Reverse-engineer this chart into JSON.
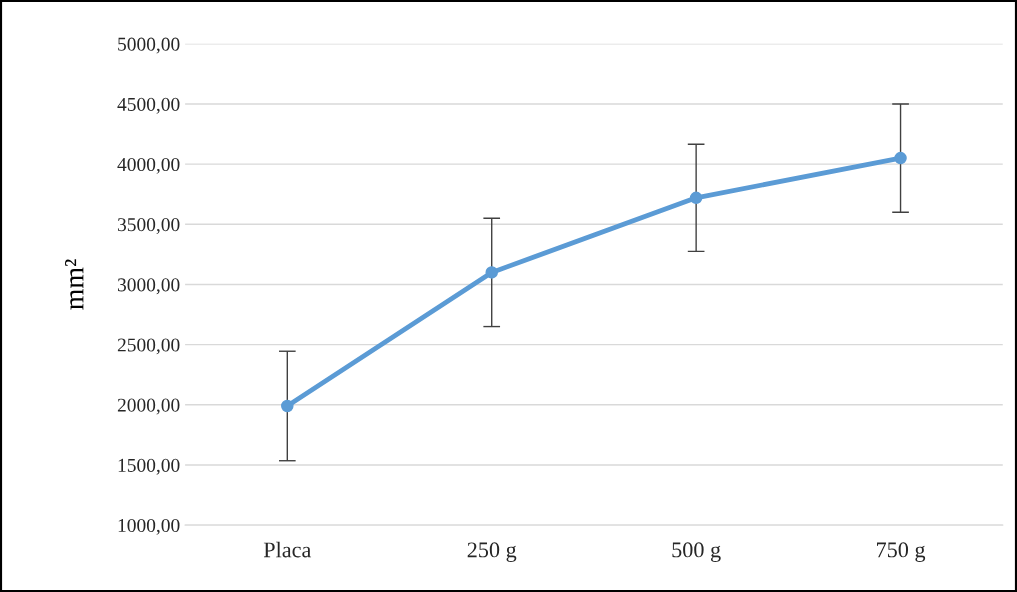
{
  "chart_data": {
    "type": "line",
    "ylabel": "mm²",
    "categories": [
      "Placa",
      "250 g",
      "500 g",
      "750 g"
    ],
    "series": [
      {
        "color": "#5b9bd5",
        "values": [
          1990,
          3100,
          3720,
          4050
        ],
        "errors": [
          455,
          450,
          445,
          450
        ]
      }
    ],
    "ylim": [
      1000,
      5000
    ],
    "yticks": [
      {
        "value": 1000,
        "label": "1000,00"
      },
      {
        "value": 1500,
        "label": "1500,00"
      },
      {
        "value": 2000,
        "label": "2000,00"
      },
      {
        "value": 2500,
        "label": "2500,00"
      },
      {
        "value": 3000,
        "label": "3000,00"
      },
      {
        "value": 3500,
        "label": "3500,00"
      },
      {
        "value": 4000,
        "label": "4000,00"
      },
      {
        "value": 4500,
        "label": "4500,00"
      },
      {
        "value": 5000,
        "label": "5000,00"
      }
    ],
    "grid": "y",
    "marker": "circle",
    "line_style": "solid",
    "legend": false
  }
}
